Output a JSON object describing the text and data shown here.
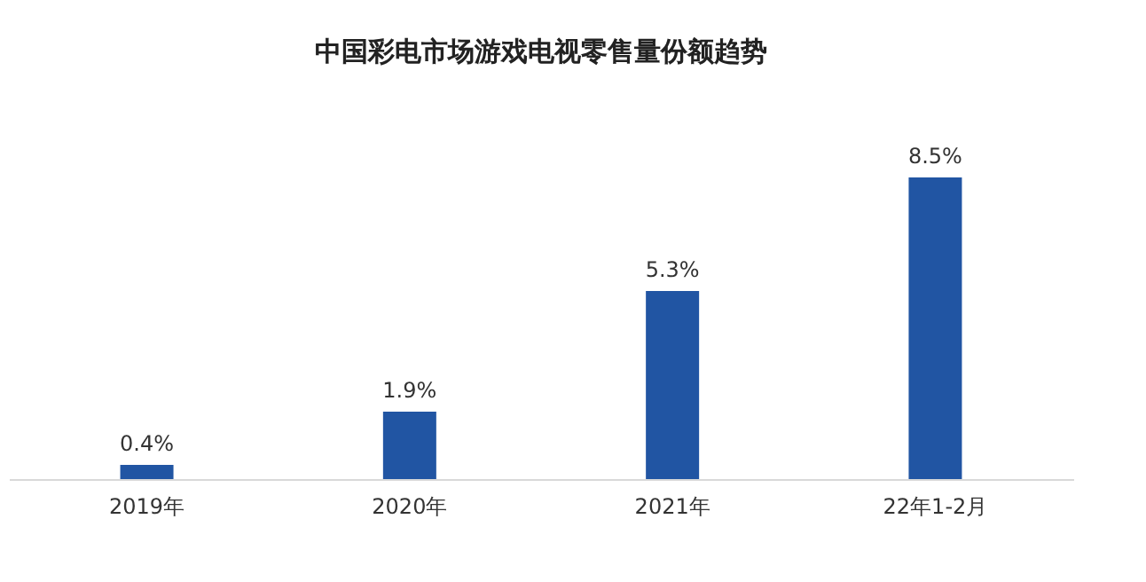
{
  "chart_data": {
    "type": "bar",
    "title": "中国彩电市场游戏电视零售量份额趋势",
    "categories": [
      "2019年",
      "2020年",
      "2021年",
      "22年1-2月"
    ],
    "values": [
      0.4,
      1.9,
      5.3,
      8.5
    ],
    "value_labels": [
      "0.4%",
      "1.9%",
      "5.3%",
      "8.5%"
    ],
    "color": "#2155a3"
  }
}
